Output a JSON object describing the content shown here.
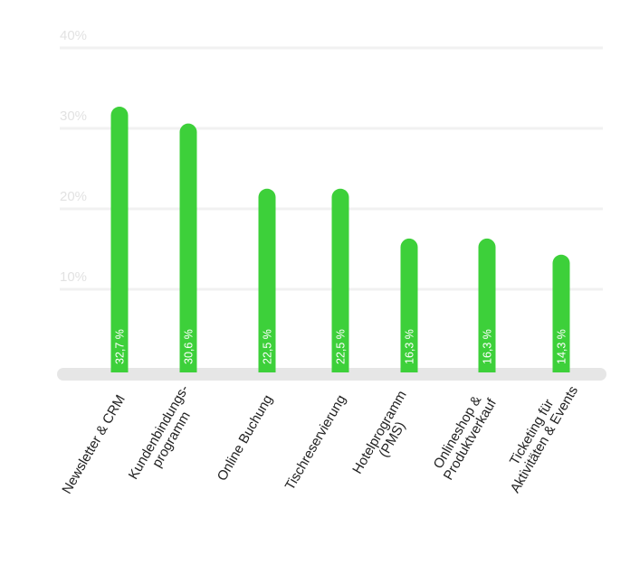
{
  "chart_data": {
    "type": "bar",
    "categories": [
      "Newsletter & CRM",
      "Kundenbindungs-\nprogramm",
      "Online Buchung",
      "Tischreservierung",
      "Hotelprogramm\n(PMS)",
      "Onlineshop &\nProduktverkauf",
      "Ticketing für\nAktivitäten & Events"
    ],
    "values": [
      32.7,
      30.6,
      22.5,
      22.5,
      16.3,
      16.3,
      14.3
    ],
    "value_labels": [
      "32,7 %",
      "30,6 %",
      "22,5 %",
      "22,5 %",
      "16,3 %",
      "16,3 %",
      "14,3 %"
    ],
    "yticks": [
      10,
      20,
      30,
      40
    ],
    "ytick_labels": [
      "10%",
      "20%",
      "30%",
      "40%"
    ],
    "ylim": [
      0,
      40
    ],
    "grid": true,
    "colors": {
      "bar": "#3dd03a",
      "grid": "#f1f1f1",
      "baseline": "#e6e6e6",
      "tick_text": "#e2e2e2",
      "category_text": "#222222",
      "value_text": "#ffffff"
    }
  }
}
